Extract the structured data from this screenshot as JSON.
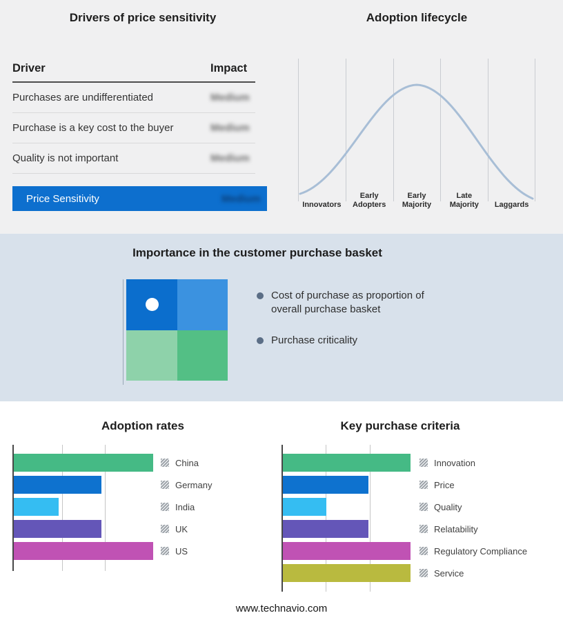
{
  "drivers_panel": {
    "title": "Drivers of price sensitivity",
    "columns": {
      "driver": "Driver",
      "impact": "Impact"
    },
    "rows": [
      {
        "driver": "Purchases are undifferentiated",
        "impact": "Medium"
      },
      {
        "driver": "Purchase is a key cost to the buyer",
        "impact": "Medium"
      },
      {
        "driver": "Quality is not important",
        "impact": "Medium"
      }
    ],
    "summary_row": {
      "label": "Price Sensitivity",
      "impact": "Medium"
    },
    "accent_color": "#0d6fce"
  },
  "basket_panel": {
    "title": "Importance in the customer purchase basket",
    "bullets": [
      "Cost of purchase as proportion of overall purchase basket",
      "Purchase criticality"
    ],
    "quadrant_colors": {
      "top_left": "#0b6ecd",
      "top_right": "#3b92e0",
      "bottom_left": "#8ed2aa",
      "bottom_right": "#53bf85"
    },
    "bullet_color": "#5b6e86"
  },
  "footer": {
    "url": "www.technavio.com"
  },
  "chart_data": [
    {
      "type": "line",
      "title": "Adoption lifecycle",
      "shape": "bell-curve",
      "categories": [
        "Innovators",
        "Early Adopters",
        "Early Majority",
        "Late Majority",
        "Laggards"
      ],
      "stage_lines": [
        [
          "Innovators",
          ""
        ],
        [
          "Early",
          "Adopters"
        ],
        [
          "Early",
          "Majority"
        ],
        [
          "Late",
          "Majority"
        ],
        [
          "Laggards",
          ""
        ]
      ],
      "curve_color": "#a8bed6",
      "grid": "vertical-only"
    },
    {
      "type": "bar",
      "title": "Adoption rates",
      "orientation": "horizontal",
      "categories": [
        "China",
        "Germany",
        "India",
        "UK",
        "US"
      ],
      "values": [
        100,
        63,
        32,
        63,
        100
      ],
      "colors": [
        "#45ba85",
        "#0e72cf",
        "#35bdf2",
        "#6456b8",
        "#c052b4"
      ],
      "x_range": [
        0,
        100
      ],
      "grid": "vertical-only",
      "legend_position": "right"
    },
    {
      "type": "bar",
      "title": "Key purchase criteria",
      "orientation": "horizontal",
      "categories": [
        "Innovation",
        "Price",
        "Quality",
        "Relatability",
        "Regulatory Compliance",
        "Service"
      ],
      "values": [
        100,
        67,
        34,
        67,
        100,
        100
      ],
      "colors": [
        "#45ba85",
        "#0e72cf",
        "#35bdf2",
        "#6456b8",
        "#c052b4",
        "#b9ba3f"
      ],
      "x_range": [
        0,
        100
      ],
      "grid": "vertical-only",
      "legend_position": "right"
    }
  ]
}
